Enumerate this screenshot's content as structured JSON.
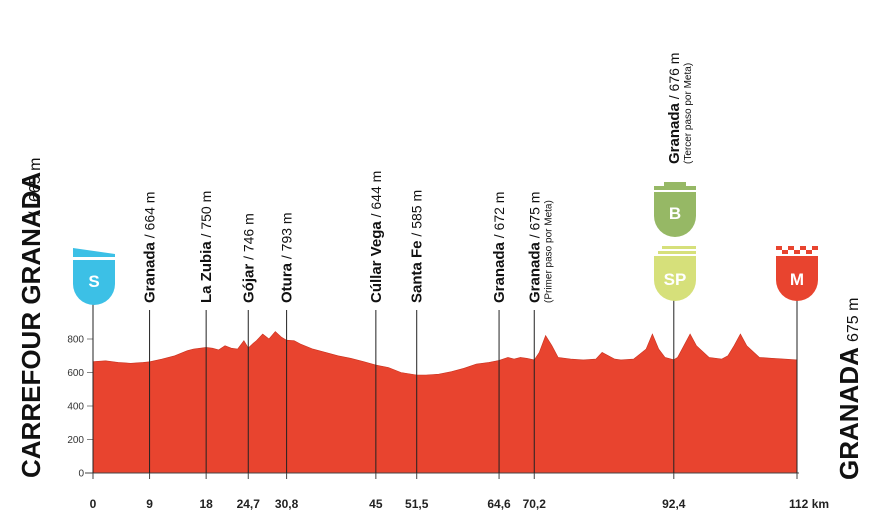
{
  "chart_data": {
    "type": "area",
    "title": "",
    "xlabel": "",
    "ylabel": "",
    "x_unit": "km",
    "y_unit": "m",
    "xlim": [
      0,
      112
    ],
    "ylim": [
      0,
      900
    ],
    "color": "#e8442f",
    "y_ticks": [
      0,
      200,
      400,
      600,
      800
    ],
    "x_ticks": [
      {
        "value": 0,
        "label": "0"
      },
      {
        "value": 9,
        "label": "9"
      },
      {
        "value": 18,
        "label": "18"
      },
      {
        "value": 24.7,
        "label": "24,7"
      },
      {
        "value": 30.8,
        "label": "30,8"
      },
      {
        "value": 45,
        "label": "45"
      },
      {
        "value": 51.5,
        "label": "51,5"
      },
      {
        "value": 64.6,
        "label": "64,6"
      },
      {
        "value": 70.2,
        "label": "70,2"
      },
      {
        "value": 92.4,
        "label": "92,4"
      },
      {
        "value": 112,
        "label": "112 km"
      }
    ],
    "profile": {
      "x": [
        0,
        2,
        4,
        6,
        8,
        9,
        11,
        13,
        15,
        16,
        18,
        19,
        20,
        21,
        22,
        23,
        24,
        24.7,
        25.5,
        26,
        27,
        28,
        29,
        30,
        30.8,
        32,
        33,
        35,
        37,
        39,
        41,
        43,
        45,
        47,
        49,
        51.5,
        53,
        55,
        57,
        59,
        61,
        63,
        64.6,
        66,
        67,
        68,
        69,
        70.2,
        71,
        72,
        73,
        74,
        76,
        78,
        80,
        81,
        82,
        83,
        84,
        86,
        88,
        89,
        90,
        91,
        92.4,
        93,
        94,
        95,
        96,
        98,
        100,
        101,
        102,
        103,
        104,
        106,
        108,
        110,
        112
      ],
      "y": [
        665,
        670,
        660,
        655,
        660,
        664,
        680,
        700,
        730,
        740,
        750,
        745,
        735,
        760,
        745,
        740,
        790,
        746,
        775,
        790,
        830,
        800,
        845,
        810,
        793,
        790,
        770,
        740,
        720,
        700,
        685,
        665,
        644,
        630,
        600,
        585,
        585,
        590,
        605,
        625,
        650,
        660,
        672,
        690,
        680,
        690,
        685,
        675,
        720,
        820,
        760,
        690,
        680,
        675,
        680,
        720,
        700,
        680,
        675,
        680,
        740,
        830,
        740,
        690,
        676,
        690,
        760,
        830,
        760,
        690,
        680,
        700,
        760,
        830,
        760,
        690,
        685,
        680,
        675
      ]
    },
    "places": [
      {
        "km": 9,
        "name": "Granada",
        "elev": "664 m",
        "note": ""
      },
      {
        "km": 18,
        "name": "La Zubia",
        "elev": "750 m",
        "note": ""
      },
      {
        "km": 24.7,
        "name": "Gójar",
        "elev": "746 m",
        "note": ""
      },
      {
        "km": 30.8,
        "name": "Otura",
        "elev": "793 m",
        "note": ""
      },
      {
        "km": 45,
        "name": "Cúllar Vega",
        "elev": "644 m",
        "note": ""
      },
      {
        "km": 51.5,
        "name": "Santa Fe",
        "elev": "585 m",
        "note": ""
      },
      {
        "km": 64.6,
        "name": "Granada",
        "elev": "672 m",
        "note": ""
      },
      {
        "km": 70.2,
        "name": "Granada",
        "elev": "675 m",
        "note": "(Primer paso por Meta)"
      },
      {
        "km": 92.4,
        "name": "Granada",
        "elev": "676 m",
        "note": "(Tercer paso por Meta)"
      }
    ],
    "start": {
      "name": "CARREFOUR GRANADA",
      "elev": "665 m",
      "badge": "S",
      "color": "#3cc0e6"
    },
    "finish": {
      "name": "GRANADA",
      "elev": "675 m",
      "badge": "M",
      "color": "#e8442f"
    },
    "sprint": {
      "badge": "SP",
      "color": "#d6e07a"
    },
    "bonus": {
      "badge": "B",
      "color": "#96b865"
    }
  }
}
